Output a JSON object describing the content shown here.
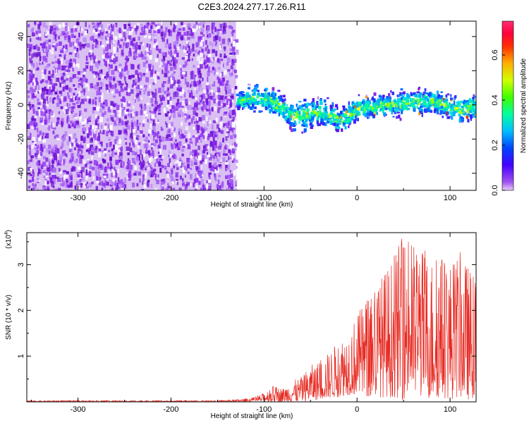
{
  "title": "C2E3.2024.277.17.26.R11",
  "chart_data": [
    {
      "type": "heatmap",
      "xlabel": "Height of straight line (km)",
      "ylabel": "Frequency (Hz)",
      "xlim": [
        -355,
        128
      ],
      "ylim": [
        -50,
        49
      ],
      "xticks": [
        -300,
        -200,
        -100,
        0,
        100
      ],
      "yticks": [
        -40,
        -20,
        0,
        20,
        40
      ],
      "noise_region_x": [
        -355,
        -130
      ],
      "signal_band": {
        "x": [
          -130,
          -110,
          -95,
          -80,
          -70,
          -60,
          -40,
          -20,
          0,
          20,
          50,
          80,
          110,
          128
        ],
        "center_hz": [
          3,
          5,
          4,
          -2,
          -6,
          -5,
          -3,
          -8,
          -2,
          0,
          2,
          3,
          -2,
          0
        ],
        "half_width_hz": [
          6,
          8,
          9,
          8,
          9,
          10,
          9,
          8,
          8,
          7,
          8,
          8,
          8,
          8
        ]
      },
      "colorbar": {
        "label": "Normalized spectral amplitude",
        "range": [
          0.0,
          0.75
        ],
        "ticks": [
          0.0,
          0.2,
          0.4,
          0.6
        ],
        "tick_labels": [
          "0.0",
          "0.2",
          "0.4",
          "0.6"
        ]
      },
      "colors": {
        "noise": "#7a1be0",
        "colormap": [
          "#dcbff5",
          "#8a2be2",
          "#3333ff",
          "#00bfff",
          "#00ff80",
          "#80ff00",
          "#ffff00",
          "#ff8000",
          "#ff0000",
          "#ff2277"
        ]
      },
      "grid": false
    },
    {
      "type": "line",
      "xlabel": "Height of straight line (km)",
      "ylabel": "SNR (10 * v/v)",
      "exponent_label": "(x10",
      "exponent_power": "4",
      "exponent_close": ")",
      "xlim": [
        -355,
        128
      ],
      "ylim": [
        0,
        3.7
      ],
      "xticks": [
        -300,
        -200,
        -100,
        0,
        100
      ],
      "yticks": [
        1,
        2,
        3
      ],
      "envelope": {
        "x": [
          -355,
          -150,
          -130,
          -110,
          -100,
          -90,
          -80,
          -70,
          -60,
          -50,
          -40,
          -30,
          -20,
          -10,
          0,
          10,
          20,
          30,
          40,
          50,
          60,
          70,
          80,
          90,
          100,
          110,
          120,
          128
        ],
        "ymax": [
          0.03,
          0.03,
          0.05,
          0.1,
          0.2,
          0.35,
          0.3,
          0.45,
          0.55,
          0.8,
          0.9,
          1.1,
          1.35,
          1.6,
          1.9,
          2.3,
          2.6,
          2.9,
          3.2,
          3.7,
          3.5,
          3.4,
          3.2,
          3.3,
          3.1,
          3.3,
          3.0,
          2.6
        ],
        "ymin": [
          0.0,
          0.0,
          0.0,
          0.0,
          0.0,
          0.0,
          0.0,
          0.0,
          0.0,
          0.02,
          0.05,
          0.08,
          0.1,
          0.15,
          0.15,
          0.1,
          0.1,
          0.1,
          0.1,
          0.05,
          0.1,
          0.1,
          0.05,
          0.1,
          0.05,
          0.1,
          0.05,
          0.1
        ]
      },
      "colors": {
        "line": "#e62a22"
      },
      "grid": false
    }
  ]
}
